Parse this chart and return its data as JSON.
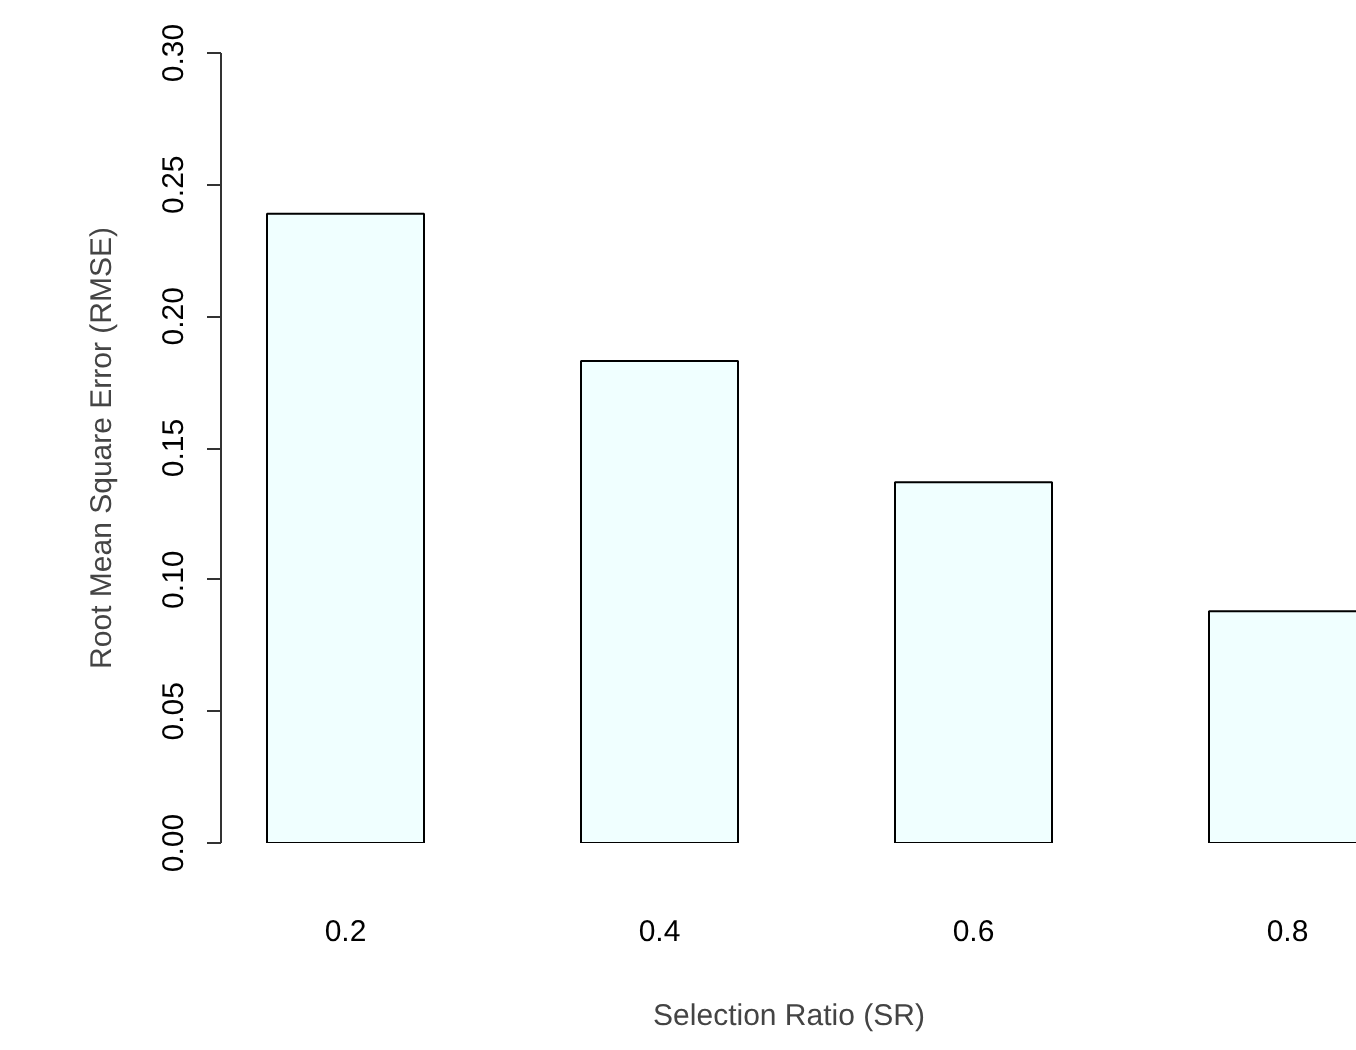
{
  "chart_data": {
    "type": "bar",
    "xlabel": "Selection Ratio (SR)",
    "ylabel": "Root Mean Square Error (RMSE)",
    "categories": [
      "0.2",
      "0.4",
      "0.6",
      "0.8"
    ],
    "values": [
      0.239,
      0.183,
      0.137,
      0.088
    ],
    "color": "#f0ffff",
    "ylim": [
      0,
      0.3
    ],
    "yticks": [
      {
        "value": 0,
        "label": "0.00"
      },
      {
        "value": 0.05,
        "label": "0.05"
      },
      {
        "value": 0.1,
        "label": "0.10"
      },
      {
        "value": 0.15,
        "label": "0.15"
      },
      {
        "value": 0.2,
        "label": "0.20"
      },
      {
        "value": 0.25,
        "label": "0.25"
      },
      {
        "value": 0.3,
        "label": "0.30"
      }
    ],
    "grid": false
  }
}
